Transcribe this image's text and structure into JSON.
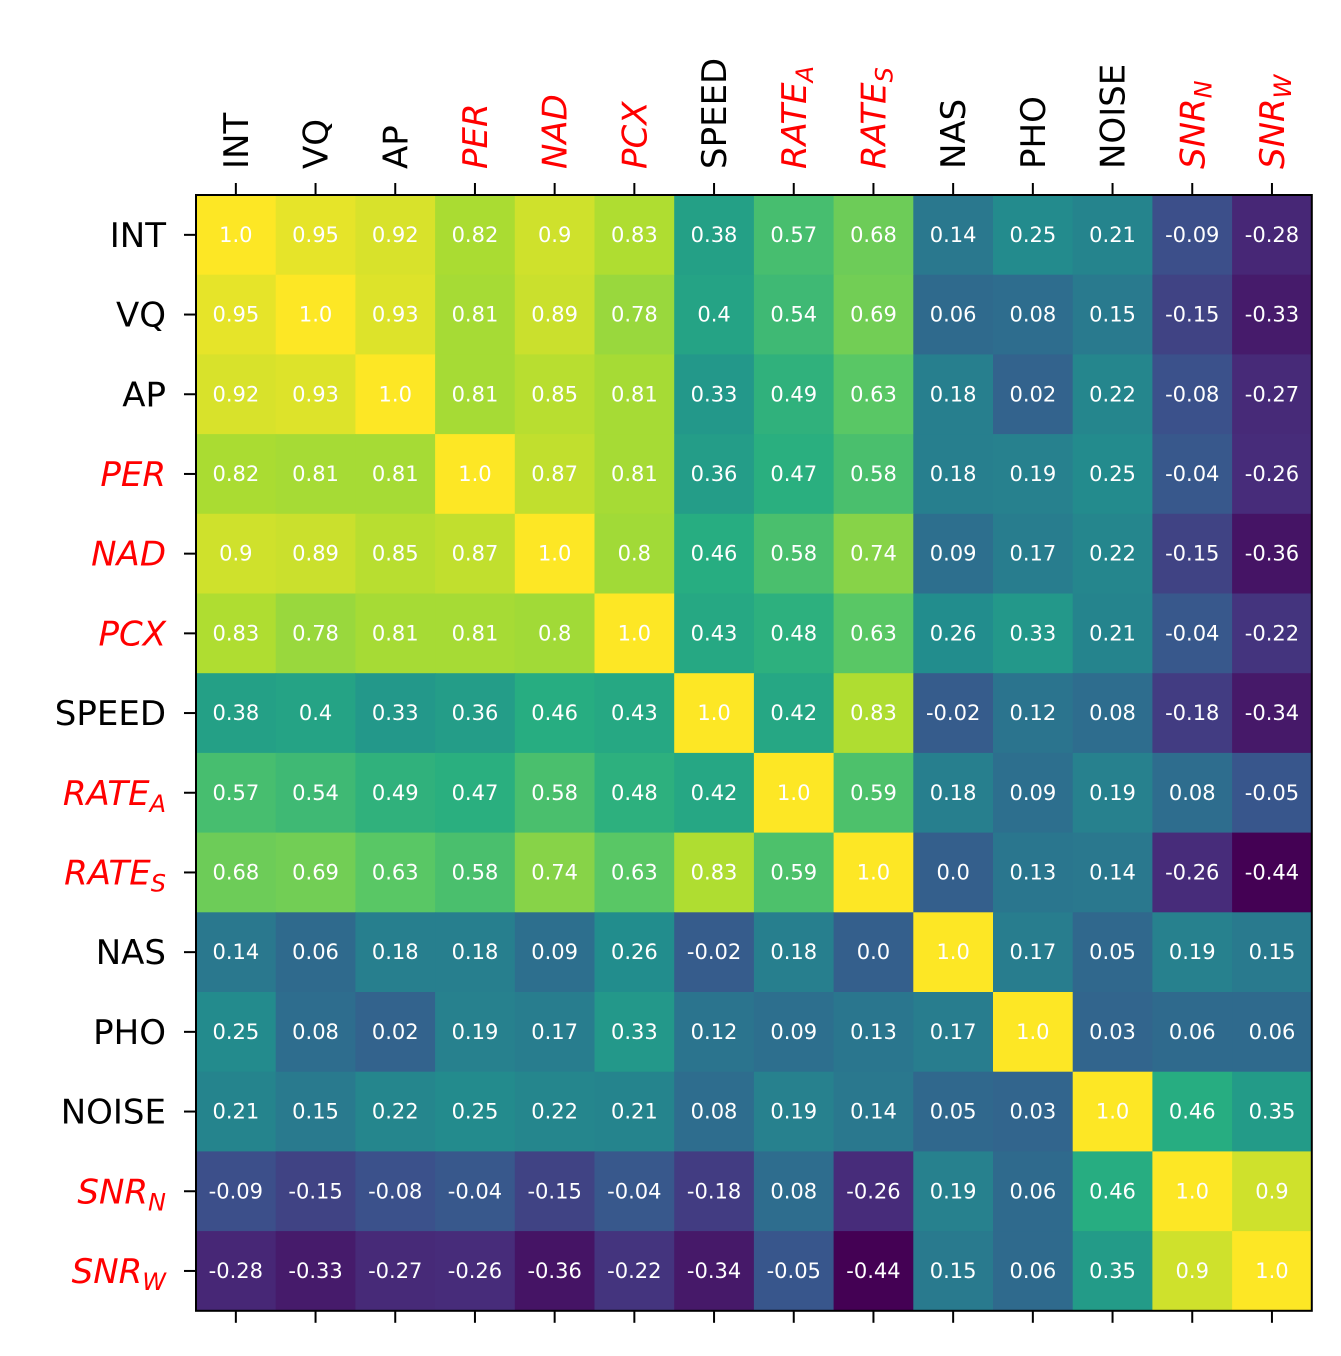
{
  "chart_data": {
    "type": "heatmap",
    "title": "",
    "xlabel": "",
    "ylabel": "",
    "colormap": "viridis",
    "vmin": -0.44,
    "vmax": 1.0,
    "label_colors": {
      "normal": "#000000",
      "highlight": "#ff0000"
    },
    "variables": [
      {
        "name": "INT",
        "sub": "",
        "italic": false,
        "highlight": false
      },
      {
        "name": "VQ",
        "sub": "",
        "italic": false,
        "highlight": false
      },
      {
        "name": "AP",
        "sub": "",
        "italic": false,
        "highlight": false
      },
      {
        "name": "PER",
        "sub": "",
        "italic": true,
        "highlight": true
      },
      {
        "name": "NAD",
        "sub": "",
        "italic": true,
        "highlight": true
      },
      {
        "name": "PCX",
        "sub": "",
        "italic": true,
        "highlight": true
      },
      {
        "name": "SPEED",
        "sub": "",
        "italic": false,
        "highlight": false
      },
      {
        "name": "RATE",
        "sub": "A",
        "italic": true,
        "highlight": true
      },
      {
        "name": "RATE",
        "sub": "S",
        "italic": true,
        "highlight": true
      },
      {
        "name": "NAS",
        "sub": "",
        "italic": false,
        "highlight": false
      },
      {
        "name": "PHO",
        "sub": "",
        "italic": false,
        "highlight": false
      },
      {
        "name": "NOISE",
        "sub": "",
        "italic": false,
        "highlight": false
      },
      {
        "name": "SNR",
        "sub": "N",
        "italic": true,
        "highlight": true
      },
      {
        "name": "SNR",
        "sub": "W",
        "italic": true,
        "highlight": true
      }
    ],
    "values": [
      [
        "1.0",
        "0.95",
        "0.92",
        "0.82",
        "0.9",
        "0.83",
        "0.38",
        "0.57",
        "0.68",
        "0.14",
        "0.25",
        "0.21",
        "-0.09",
        "-0.28"
      ],
      [
        "0.95",
        "1.0",
        "0.93",
        "0.81",
        "0.89",
        "0.78",
        "0.4",
        "0.54",
        "0.69",
        "0.06",
        "0.08",
        "0.15",
        "-0.15",
        "-0.33"
      ],
      [
        "0.92",
        "0.93",
        "1.0",
        "0.81",
        "0.85",
        "0.81",
        "0.33",
        "0.49",
        "0.63",
        "0.18",
        "0.02",
        "0.22",
        "-0.08",
        "-0.27"
      ],
      [
        "0.82",
        "0.81",
        "0.81",
        "1.0",
        "0.87",
        "0.81",
        "0.36",
        "0.47",
        "0.58",
        "0.18",
        "0.19",
        "0.25",
        "-0.04",
        "-0.26"
      ],
      [
        "0.9",
        "0.89",
        "0.85",
        "0.87",
        "1.0",
        "0.8",
        "0.46",
        "0.58",
        "0.74",
        "0.09",
        "0.17",
        "0.22",
        "-0.15",
        "-0.36"
      ],
      [
        "0.83",
        "0.78",
        "0.81",
        "0.81",
        "0.8",
        "1.0",
        "0.43",
        "0.48",
        "0.63",
        "0.26",
        "0.33",
        "0.21",
        "-0.04",
        "-0.22"
      ],
      [
        "0.38",
        "0.4",
        "0.33",
        "0.36",
        "0.46",
        "0.43",
        "1.0",
        "0.42",
        "0.83",
        "-0.02",
        "0.12",
        "0.08",
        "-0.18",
        "-0.34"
      ],
      [
        "0.57",
        "0.54",
        "0.49",
        "0.47",
        "0.58",
        "0.48",
        "0.42",
        "1.0",
        "0.59",
        "0.18",
        "0.09",
        "0.19",
        "0.08",
        "-0.05"
      ],
      [
        "0.68",
        "0.69",
        "0.63",
        "0.58",
        "0.74",
        "0.63",
        "0.83",
        "0.59",
        "1.0",
        "0.0",
        "0.13",
        "0.14",
        "-0.26",
        "-0.44"
      ],
      [
        "0.14",
        "0.06",
        "0.18",
        "0.18",
        "0.09",
        "0.26",
        "-0.02",
        "0.18",
        "0.0",
        "1.0",
        "0.17",
        "0.05",
        "0.19",
        "0.15"
      ],
      [
        "0.25",
        "0.08",
        "0.02",
        "0.19",
        "0.17",
        "0.33",
        "0.12",
        "0.09",
        "0.13",
        "0.17",
        "1.0",
        "0.03",
        "0.06",
        "0.06"
      ],
      [
        "0.21",
        "0.15",
        "0.22",
        "0.25",
        "0.22",
        "0.21",
        "0.08",
        "0.19",
        "0.14",
        "0.05",
        "0.03",
        "1.0",
        "0.46",
        "0.35"
      ],
      [
        "-0.09",
        "-0.15",
        "-0.08",
        "-0.04",
        "-0.15",
        "-0.04",
        "-0.18",
        "0.08",
        "-0.26",
        "0.19",
        "0.06",
        "0.46",
        "1.0",
        "0.9"
      ],
      [
        "-0.28",
        "-0.33",
        "-0.27",
        "-0.26",
        "-0.36",
        "-0.22",
        "-0.34",
        "-0.05",
        "-0.44",
        "0.15",
        "0.06",
        "0.35",
        "0.9",
        "1.0"
      ]
    ]
  }
}
